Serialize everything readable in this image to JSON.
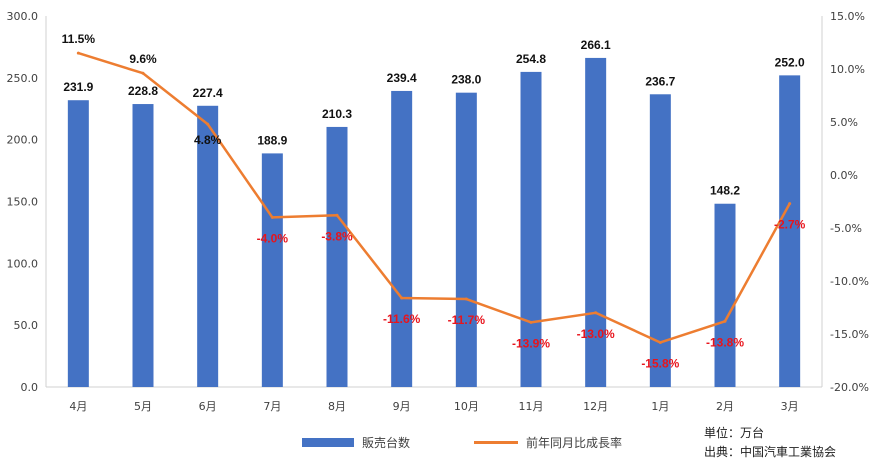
{
  "chart_data": {
    "type": "bar+line",
    "categories": [
      "4月",
      "5月",
      "6月",
      "7月",
      "8月",
      "9月",
      "10月",
      "11月",
      "12月",
      "1月",
      "2月",
      "3月"
    ],
    "series": [
      {
        "name": "販売台数",
        "type": "bar",
        "axis": "left",
        "values": [
          231.9,
          228.8,
          227.4,
          188.9,
          210.3,
          239.4,
          238.0,
          254.8,
          266.1,
          236.7,
          148.2,
          252.0
        ],
        "labels": [
          "231.9",
          "228.8",
          "227.4",
          "188.9",
          "210.3",
          "239.4",
          "238.0",
          "254.8",
          "266.1",
          "236.7",
          "148.2",
          "252.0"
        ]
      },
      {
        "name": "前年同月比成長率",
        "type": "line",
        "axis": "right",
        "values": [
          11.5,
          9.6,
          4.8,
          -4.0,
          -3.8,
          -11.6,
          -11.7,
          -13.9,
          -13.0,
          -15.8,
          -13.8,
          -2.7
        ],
        "labels": [
          "11.5%",
          "9.6%",
          "4.8%",
          "-4.0%",
          "-3.8%",
          "-11.6%",
          "-11.7%",
          "-13.9%",
          "-13.0%",
          "-15.8%",
          "-13.8%",
          "-2.7%"
        ]
      }
    ],
    "y_left": {
      "min": 0,
      "max": 300,
      "step": 50,
      "ticks": [
        "0.0",
        "50.0",
        "100.0",
        "150.0",
        "200.0",
        "250.0",
        "300.0"
      ]
    },
    "y_right": {
      "min": -20,
      "max": 15,
      "step": 5,
      "ticks": [
        "-20.0%",
        "-15.0%",
        "-10.0%",
        "-5.0%",
        "0.0%",
        "5.0%",
        "10.0%",
        "15.0%"
      ]
    },
    "grid": false,
    "legend_position": "bottom",
    "colors": {
      "bar": "#4472C4",
      "line": "#ED7D31",
      "negative_label": "#E8141C",
      "positive_label": "#111111"
    }
  },
  "notes": {
    "unit": "単位：万台",
    "source": "出典：中国汽車工業協会"
  }
}
